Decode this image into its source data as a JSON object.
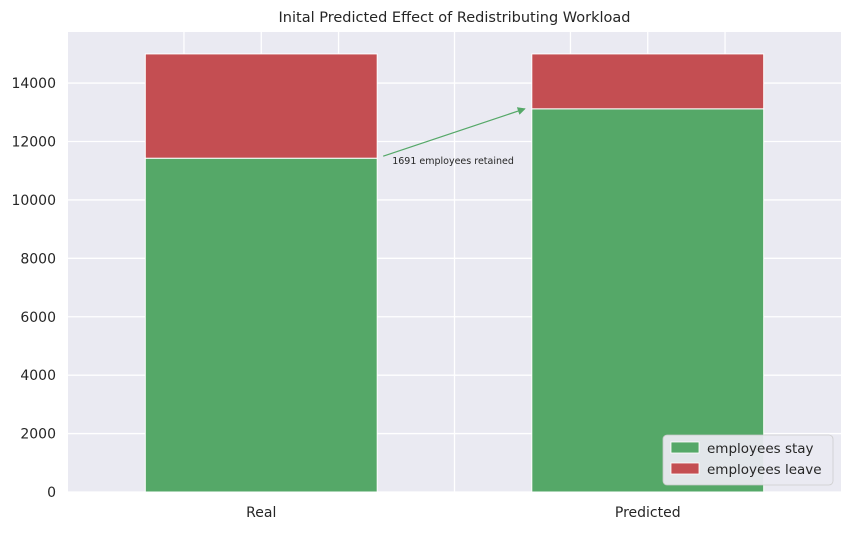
{
  "chart_data": {
    "type": "bar",
    "stacked": true,
    "title": "Inital Predicted Effect of Redistributing Workload",
    "xlabel": "",
    "ylabel": "",
    "categories": [
      "Real",
      "Predicted"
    ],
    "series": [
      {
        "name": "employees stay",
        "values": [
          11428,
          13119
        ],
        "color": "#55a868"
      },
      {
        "name": "employees leave",
        "values": [
          3571,
          1880
        ],
        "color": "#c44e52"
      }
    ],
    "ylim": [
      0,
      15749
    ],
    "yticks": [
      0,
      2000,
      4000,
      6000,
      8000,
      10000,
      12000,
      14000
    ],
    "grid": true,
    "background": "#eaeaf2",
    "legend_position": "bottom-right",
    "annotation": {
      "text": "1691 employees retained",
      "arrow_from": {
        "category": "Real",
        "y": 11428
      },
      "arrow_to": {
        "category": "Predicted",
        "y": 13119
      },
      "color": "#55a868"
    }
  }
}
